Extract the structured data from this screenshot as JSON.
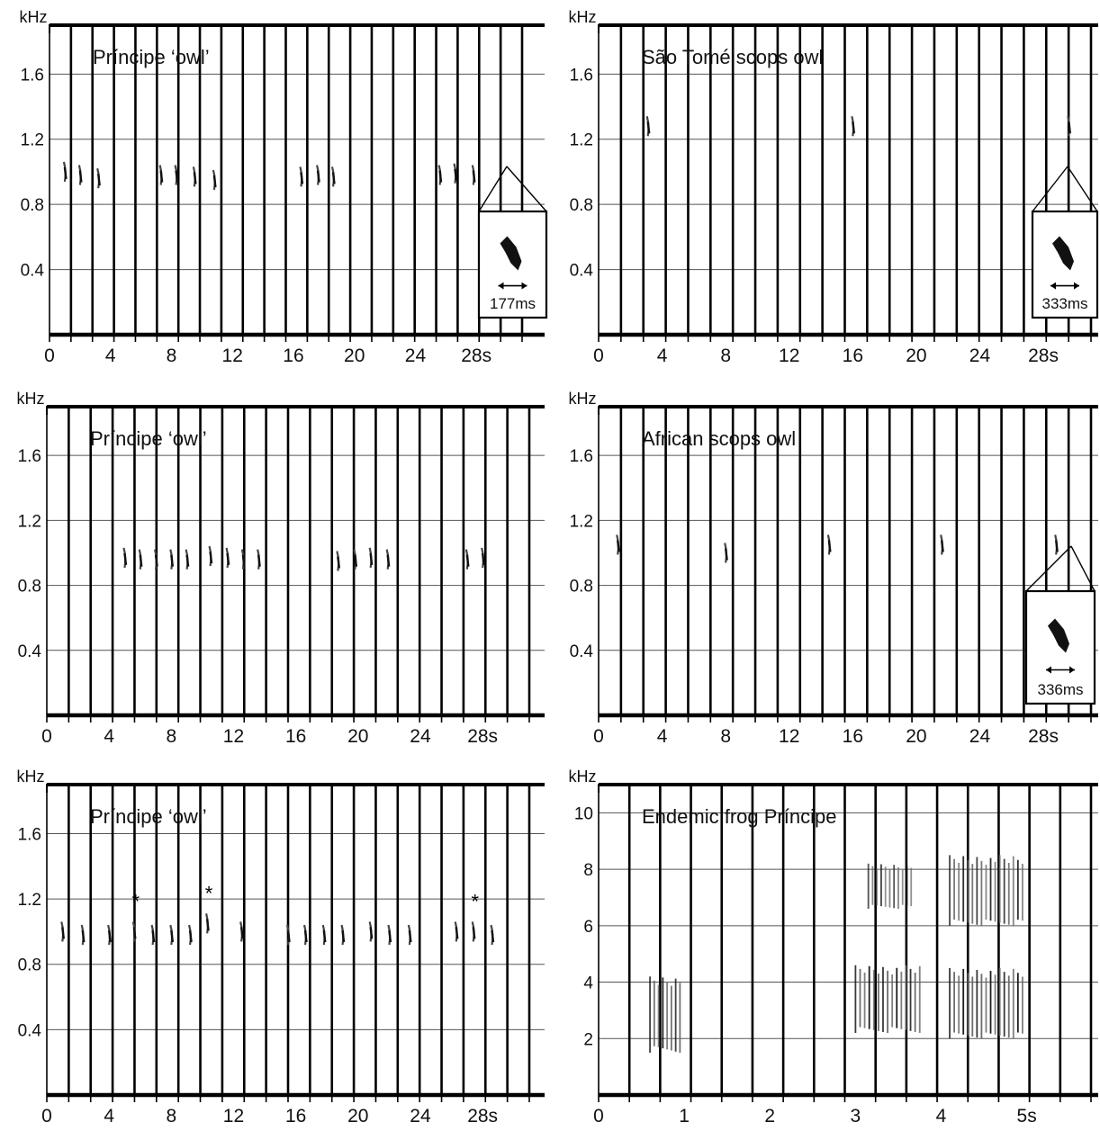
{
  "chart_data": [
    {
      "type": "spectrogram",
      "title": "Príncipe ‘owl’",
      "ylabel": "kHz",
      "y_ticks": [
        "1.6",
        "1.2",
        "0.8",
        "0.4"
      ],
      "x_ticks": [
        "0",
        "4",
        "8",
        "12",
        "16",
        "20",
        "24",
        "28s"
      ],
      "xlim": [
        0,
        31
      ],
      "ylim": [
        0,
        1.9
      ],
      "inset": {
        "duration_label": "177ms"
      },
      "notes": [
        {
          "t": 1.0,
          "f": 1.0
        },
        {
          "t": 2.0,
          "f": 0.98
        },
        {
          "t": 3.2,
          "f": 0.96
        },
        {
          "t": 7.3,
          "f": 0.98
        },
        {
          "t": 8.3,
          "f": 0.98
        },
        {
          "t": 9.5,
          "f": 0.97
        },
        {
          "t": 10.8,
          "f": 0.95
        },
        {
          "t": 16.5,
          "f": 0.97
        },
        {
          "t": 17.6,
          "f": 0.98
        },
        {
          "t": 18.6,
          "f": 0.97
        },
        {
          "t": 25.6,
          "f": 0.98
        },
        {
          "t": 26.6,
          "f": 0.99
        },
        {
          "t": 27.8,
          "f": 0.98
        }
      ]
    },
    {
      "type": "spectrogram",
      "title": "São Tomé scops owl",
      "ylabel": "kHz",
      "y_ticks": [
        "1.6",
        "1.2",
        "0.8",
        "0.4"
      ],
      "x_ticks": [
        "0",
        "4",
        "8",
        "12",
        "16",
        "20",
        "24",
        "28s"
      ],
      "xlim": [
        0,
        31
      ],
      "ylim": [
        0,
        1.9
      ],
      "inset": {
        "duration_label": "333ms"
      },
      "notes": [
        {
          "t": 3.1,
          "f": 1.28
        },
        {
          "t": 16.0,
          "f": 1.28
        },
        {
          "t": 29.6,
          "f": 1.28
        }
      ]
    },
    {
      "type": "spectrogram",
      "title": "Príncipe ‘owl’",
      "ylabel": "kHz",
      "y_ticks": [
        "1.6",
        "1.2",
        "0.8",
        "0.4"
      ],
      "x_ticks": [
        "0",
        "4",
        "8",
        "12",
        "16",
        "20",
        "24",
        "28s"
      ],
      "xlim": [
        0,
        31
      ],
      "ylim": [
        0,
        1.9
      ],
      "notes": [
        {
          "t": 5.0,
          "f": 0.97
        },
        {
          "t": 6.0,
          "f": 0.96
        },
        {
          "t": 7.0,
          "f": 0.96
        },
        {
          "t": 8.0,
          "f": 0.96
        },
        {
          "t": 9.0,
          "f": 0.96
        },
        {
          "t": 10.5,
          "f": 0.98
        },
        {
          "t": 11.6,
          "f": 0.97
        },
        {
          "t": 12.6,
          "f": 0.96
        },
        {
          "t": 13.6,
          "f": 0.96
        },
        {
          "t": 18.7,
          "f": 0.95
        },
        {
          "t": 19.8,
          "f": 0.96
        },
        {
          "t": 20.8,
          "f": 0.97
        },
        {
          "t": 21.9,
          "f": 0.96
        },
        {
          "t": 27.0,
          "f": 0.96
        },
        {
          "t": 28.0,
          "f": 0.97
        }
      ]
    },
    {
      "type": "spectrogram",
      "title": "African scops owl",
      "ylabel": "kHz",
      "y_ticks": [
        "1.6",
        "1.2",
        "0.8",
        "0.4"
      ],
      "x_ticks": [
        "0",
        "4",
        "8",
        "12",
        "16",
        "20",
        "24",
        "28s"
      ],
      "xlim": [
        0,
        31
      ],
      "ylim": [
        0,
        1.9
      ],
      "inset": {
        "duration_label": "336ms"
      },
      "notes": [
        {
          "t": 1.2,
          "f": 1.05
        },
        {
          "t": 8.0,
          "f": 1.0
        },
        {
          "t": 14.5,
          "f": 1.05
        },
        {
          "t": 21.6,
          "f": 1.05
        },
        {
          "t": 28.8,
          "f": 1.05
        }
      ]
    },
    {
      "type": "spectrogram",
      "title": "Príncipe ‘owl’",
      "ylabel": "kHz",
      "y_ticks": [
        "1.6",
        "1.2",
        "0.8",
        "0.4"
      ],
      "x_ticks": [
        "0",
        "4",
        "8",
        "12",
        "16",
        "20",
        "24",
        "28s"
      ],
      "xlim": [
        0,
        31
      ],
      "ylim": [
        0,
        1.9
      ],
      "marker_label": "*",
      "notes": [
        {
          "t": 1.0,
          "f": 1.0
        },
        {
          "t": 2.3,
          "f": 0.98
        },
        {
          "t": 4.0,
          "f": 0.98
        },
        {
          "t": 5.6,
          "f": 1.0,
          "marked": true
        },
        {
          "t": 6.8,
          "f": 0.98
        },
        {
          "t": 8.0,
          "f": 0.98
        },
        {
          "t": 9.2,
          "f": 0.98
        },
        {
          "t": 10.3,
          "f": 1.05,
          "marked": true
        },
        {
          "t": 12.5,
          "f": 1.0
        },
        {
          "t": 15.5,
          "f": 0.98
        },
        {
          "t": 16.6,
          "f": 0.98
        },
        {
          "t": 17.8,
          "f": 0.98
        },
        {
          "t": 19.0,
          "f": 0.98
        },
        {
          "t": 20.8,
          "f": 1.0
        },
        {
          "t": 22.0,
          "f": 0.98
        },
        {
          "t": 23.3,
          "f": 0.98
        },
        {
          "t": 26.3,
          "f": 1.0
        },
        {
          "t": 27.4,
          "f": 1.0,
          "marked": true
        },
        {
          "t": 28.6,
          "f": 0.98
        }
      ]
    },
    {
      "type": "spectrogram",
      "title": "Endemic frog Príncipe",
      "ylabel": "kHz",
      "y_ticks": [
        "10",
        "8",
        "6",
        "4",
        "2"
      ],
      "x_ticks": [
        "0",
        "1",
        "2",
        "3",
        "4",
        "5s"
      ],
      "xlim": [
        0,
        5.75
      ],
      "ylim": [
        0,
        11
      ],
      "bursts": [
        {
          "t0": 0.6,
          "t1": 0.95,
          "f0": 1.5,
          "f1": 4.2,
          "density": 0.9
        },
        {
          "t0": 3.0,
          "t1": 3.75,
          "f0": 2.2,
          "f1": 4.6,
          "density": 1.0
        },
        {
          "t0": 3.15,
          "t1": 3.65,
          "f0": 6.6,
          "f1": 8.2,
          "density": 0.6
        },
        {
          "t0": 4.1,
          "t1": 4.95,
          "f0": 2.0,
          "f1": 4.5,
          "density": 1.0
        },
        {
          "t0": 4.1,
          "t1": 4.95,
          "f0": 6.0,
          "f1": 8.5,
          "density": 0.8
        }
      ]
    }
  ]
}
